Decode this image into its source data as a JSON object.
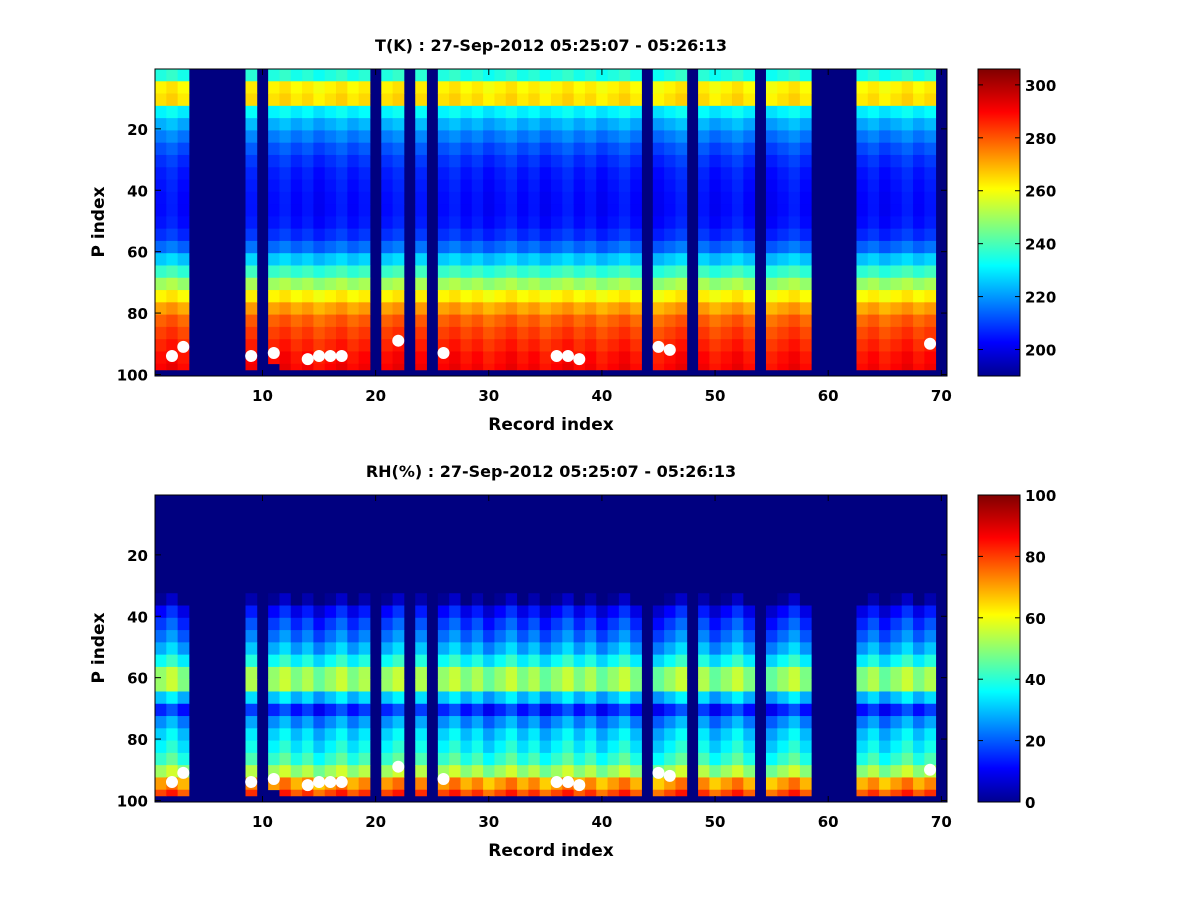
{
  "chart_data": [
    {
      "type": "heatmap",
      "title": "T(K) : 27-Sep-2012 05:25:07 - 05:26:13",
      "xlabel": "Record index",
      "ylabel": "P index",
      "xlim": [
        0.5,
        70.5
      ],
      "ylim": [
        0.5,
        100.5
      ],
      "y_reversed": true,
      "xticks": [
        10,
        20,
        30,
        40,
        50,
        60,
        70
      ],
      "yticks": [
        20,
        40,
        60,
        80,
        100
      ],
      "colorbar": {
        "colormap": "jet",
        "clim": [
          190,
          306
        ],
        "ticks": [
          200,
          220,
          240,
          260,
          280,
          300
        ]
      },
      "profile": [
        [
          1,
          228
        ],
        [
          3,
          240
        ],
        [
          5,
          250
        ],
        [
          7,
          268
        ],
        [
          9,
          277
        ],
        [
          11,
          262
        ],
        [
          13,
          240
        ],
        [
          15,
          230
        ],
        [
          20,
          222
        ],
        [
          25,
          215
        ],
        [
          30,
          210
        ],
        [
          35,
          207
        ],
        [
          40,
          206
        ],
        [
          45,
          205
        ],
        [
          50,
          206
        ],
        [
          55,
          210
        ],
        [
          58,
          215
        ],
        [
          62,
          226
        ],
        [
          66,
          238
        ],
        [
          70,
          250
        ],
        [
          74,
          262
        ],
        [
          78,
          272
        ],
        [
          82,
          280
        ],
        [
          86,
          284
        ],
        [
          90,
          287
        ],
        [
          94,
          290
        ],
        [
          98,
          292
        ]
      ],
      "data_columns": [
        1,
        2,
        3,
        9,
        11,
        12,
        13,
        14,
        15,
        16,
        17,
        18,
        19,
        21,
        22,
        24,
        26,
        27,
        28,
        29,
        30,
        31,
        32,
        33,
        34,
        35,
        36,
        37,
        38,
        39,
        40,
        41,
        42,
        43,
        45,
        46,
        47,
        49,
        50,
        51,
        52,
        53,
        55,
        56,
        57,
        58,
        63,
        64,
        65,
        66,
        67,
        68,
        69
      ],
      "bottom_level": [
        98,
        98,
        98,
        98,
        96,
        98,
        98,
        98,
        98,
        98,
        98,
        98,
        98,
        98,
        98,
        98,
        98,
        98,
        98,
        98,
        98,
        98,
        98,
        98,
        98,
        98,
        98,
        98,
        98,
        98,
        98,
        98,
        98,
        98,
        98,
        98,
        98,
        98,
        98,
        98,
        98,
        98,
        98,
        98,
        98,
        98,
        98,
        98,
        98,
        98,
        98,
        98,
        98
      ],
      "markers": [
        [
          2,
          94
        ],
        [
          3,
          91
        ],
        [
          9,
          94
        ],
        [
          11,
          93
        ],
        [
          14,
          95
        ],
        [
          15,
          94
        ],
        [
          16,
          94
        ],
        [
          17,
          94
        ],
        [
          22,
          89
        ],
        [
          26,
          93
        ],
        [
          36,
          94
        ],
        [
          37,
          94
        ],
        [
          38,
          95
        ],
        [
          45,
          91
        ],
        [
          46,
          92
        ],
        [
          69,
          90
        ]
      ]
    },
    {
      "type": "heatmap",
      "title": "RH(%) : 27-Sep-2012 05:25:07 - 05:26:13",
      "xlabel": "Record index",
      "ylabel": "P index",
      "xlim": [
        0.5,
        70.5
      ],
      "ylim": [
        0.5,
        100.5
      ],
      "y_reversed": true,
      "xticks": [
        10,
        20,
        30,
        40,
        50,
        60,
        70
      ],
      "yticks": [
        20,
        40,
        60,
        80,
        100
      ],
      "colorbar": {
        "colormap": "jet",
        "clim": [
          0,
          100
        ],
        "ticks": [
          0,
          20,
          40,
          60,
          80,
          100
        ]
      },
      "profile": [
        [
          1,
          0
        ],
        [
          34,
          0
        ],
        [
          36,
          8
        ],
        [
          40,
          15
        ],
        [
          44,
          20
        ],
        [
          48,
          25
        ],
        [
          52,
          32
        ],
        [
          56,
          42
        ],
        [
          58,
          50
        ],
        [
          60,
          58
        ],
        [
          62,
          55
        ],
        [
          64,
          45
        ],
        [
          66,
          35
        ],
        [
          68,
          22
        ],
        [
          70,
          15
        ],
        [
          72,
          18
        ],
        [
          74,
          25
        ],
        [
          76,
          30
        ],
        [
          80,
          35
        ],
        [
          84,
          38
        ],
        [
          88,
          45
        ],
        [
          92,
          58
        ],
        [
          95,
          75
        ],
        [
          98,
          82
        ]
      ],
      "data_columns": [
        1,
        2,
        3,
        9,
        11,
        12,
        13,
        14,
        15,
        16,
        17,
        18,
        19,
        21,
        22,
        24,
        26,
        27,
        28,
        29,
        30,
        31,
        32,
        33,
        34,
        35,
        36,
        37,
        38,
        39,
        40,
        41,
        42,
        43,
        45,
        46,
        47,
        49,
        50,
        51,
        52,
        53,
        55,
        56,
        57,
        58,
        63,
        64,
        65,
        66,
        67,
        68,
        69
      ],
      "bottom_level": [
        98,
        98,
        98,
        98,
        96,
        98,
        98,
        98,
        98,
        98,
        98,
        98,
        98,
        98,
        98,
        98,
        98,
        98,
        98,
        98,
        98,
        98,
        98,
        98,
        98,
        98,
        98,
        98,
        98,
        98,
        98,
        98,
        98,
        98,
        98,
        98,
        98,
        98,
        98,
        98,
        98,
        98,
        98,
        98,
        98,
        98,
        98,
        98,
        98,
        98,
        98,
        98,
        98
      ],
      "markers": [
        [
          2,
          94
        ],
        [
          3,
          91
        ],
        [
          9,
          94
        ],
        [
          11,
          93
        ],
        [
          14,
          95
        ],
        [
          15,
          94
        ],
        [
          16,
          94
        ],
        [
          17,
          94
        ],
        [
          22,
          89
        ],
        [
          26,
          93
        ],
        [
          36,
          94
        ],
        [
          37,
          94
        ],
        [
          38,
          95
        ],
        [
          45,
          91
        ],
        [
          46,
          92
        ],
        [
          69,
          90
        ]
      ]
    }
  ]
}
